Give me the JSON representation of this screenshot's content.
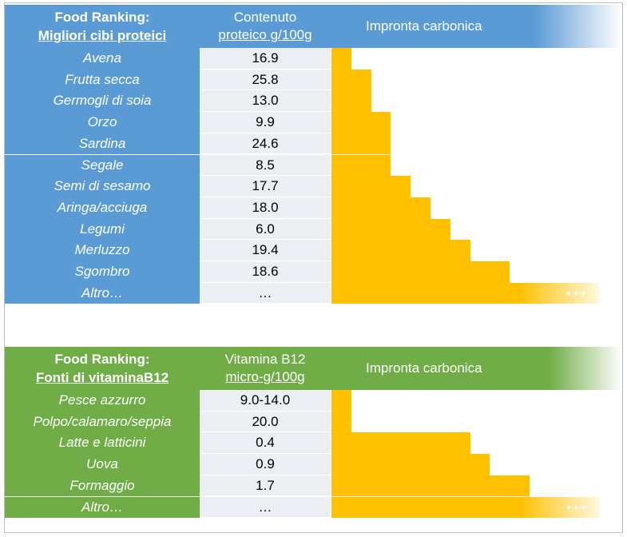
{
  "chart_data": [
    {
      "type": "table",
      "title_line1": "Food Ranking:",
      "title_line2": "Migliori cibi proteici",
      "value_header_line1": "Contenuto",
      "value_header_line2": "proteico g/100g",
      "bar_header": "Impronta carbonica",
      "colors": {
        "header": "#5b9bd5",
        "bar": "#ffc000",
        "value_bg": "#ebeef3"
      },
      "more_marker": "+++",
      "rows": [
        {
          "name": "Avena",
          "value": "16.9",
          "carbon_level": 1
        },
        {
          "name": "Frutta secca",
          "value": "25.8",
          "carbon_level": 2
        },
        {
          "name": "Germogli di soia",
          "value": "13.0",
          "carbon_level": 2
        },
        {
          "name": "Orzo",
          "value": "9.9",
          "carbon_level": 3
        },
        {
          "name": "Sardina",
          "value": "24.6",
          "carbon_level": 3
        },
        {
          "name": "Segale",
          "value": "8.5",
          "carbon_level": 3
        },
        {
          "name": "Semi di sesamo",
          "value": "17.7",
          "carbon_level": 4
        },
        {
          "name": "Aringa/acciuga",
          "value": "18.0",
          "carbon_level": 5
        },
        {
          "name": "Legumi",
          "value": "6.0",
          "carbon_level": 6
        },
        {
          "name": "Merluzzo",
          "value": "19.4",
          "carbon_level": 7
        },
        {
          "name": "Sgombro",
          "value": "18.6",
          "carbon_level": 9
        },
        {
          "name": "Altro…",
          "value": "…",
          "carbon_level": 13.5,
          "more": true
        }
      ]
    },
    {
      "type": "table",
      "title_line1": "Food Ranking:",
      "title_line2": "Fonti di vitaminaB12",
      "value_header_line1": "Vitamina B12",
      "value_header_line2": "micro-g/100g",
      "bar_header": "Impronta carbonica",
      "colors": {
        "header": "#70ad47",
        "bar": "#ffc000",
        "value_bg": "#ebeef3"
      },
      "more_marker": "+++",
      "rows": [
        {
          "name": "Pesce azzurro",
          "value": "9.0-14.0",
          "carbon_level": 1
        },
        {
          "name": "Polpo/calamaro/seppia",
          "value": "20.0",
          "carbon_level": 1
        },
        {
          "name": "Latte e latticini",
          "value": "0.4",
          "carbon_level": 7
        },
        {
          "name": "Uova",
          "value": "0.9",
          "carbon_level": 8
        },
        {
          "name": "Formaggio",
          "value": "1.7",
          "carbon_level": 10
        },
        {
          "name": "Altro…",
          "value": "…",
          "carbon_level": 13.5,
          "more": true
        }
      ]
    }
  ]
}
